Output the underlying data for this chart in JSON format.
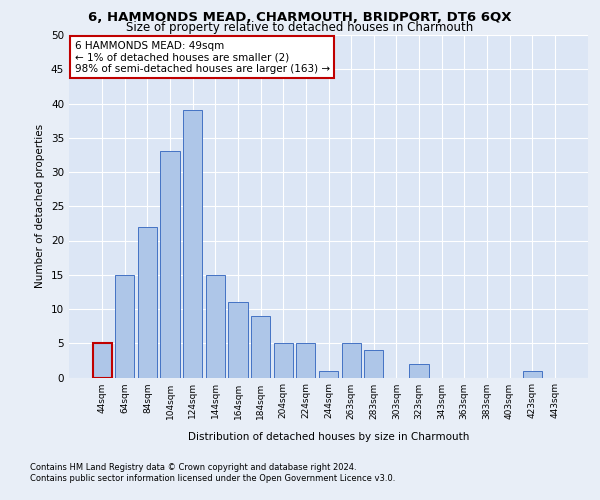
{
  "title": "6, HAMMONDS MEAD, CHARMOUTH, BRIDPORT, DT6 6QX",
  "subtitle": "Size of property relative to detached houses in Charmouth",
  "xlabel": "Distribution of detached houses by size in Charmouth",
  "ylabel": "Number of detached properties",
  "bar_labels": [
    "44sqm",
    "64sqm",
    "84sqm",
    "104sqm",
    "124sqm",
    "144sqm",
    "164sqm",
    "184sqm",
    "204sqm",
    "224sqm",
    "244sqm",
    "263sqm",
    "283sqm",
    "303sqm",
    "323sqm",
    "343sqm",
    "363sqm",
    "383sqm",
    "403sqm",
    "423sqm",
    "443sqm"
  ],
  "bar_values": [
    5,
    15,
    22,
    33,
    39,
    15,
    11,
    9,
    5,
    5,
    1,
    5,
    4,
    0,
    2,
    0,
    0,
    0,
    0,
    1,
    0
  ],
  "bar_color": "#aec6e8",
  "bar_edge_color": "#4472c4",
  "highlight_bar_index": 0,
  "highlight_bar_edge_color": "#c00000",
  "annotation_box_text": "6 HAMMONDS MEAD: 49sqm\n← 1% of detached houses are smaller (2)\n98% of semi-detached houses are larger (163) →",
  "annotation_box_edge_color": "#c00000",
  "annotation_box_bg_color": "#ffffff",
  "ylim": [
    0,
    50
  ],
  "yticks": [
    0,
    5,
    10,
    15,
    20,
    25,
    30,
    35,
    40,
    45,
    50
  ],
  "bg_color": "#e8eef7",
  "plot_bg_color": "#dce6f5",
  "grid_color": "#ffffff",
  "footer_line1": "Contains HM Land Registry data © Crown copyright and database right 2024.",
  "footer_line2": "Contains public sector information licensed under the Open Government Licence v3.0."
}
